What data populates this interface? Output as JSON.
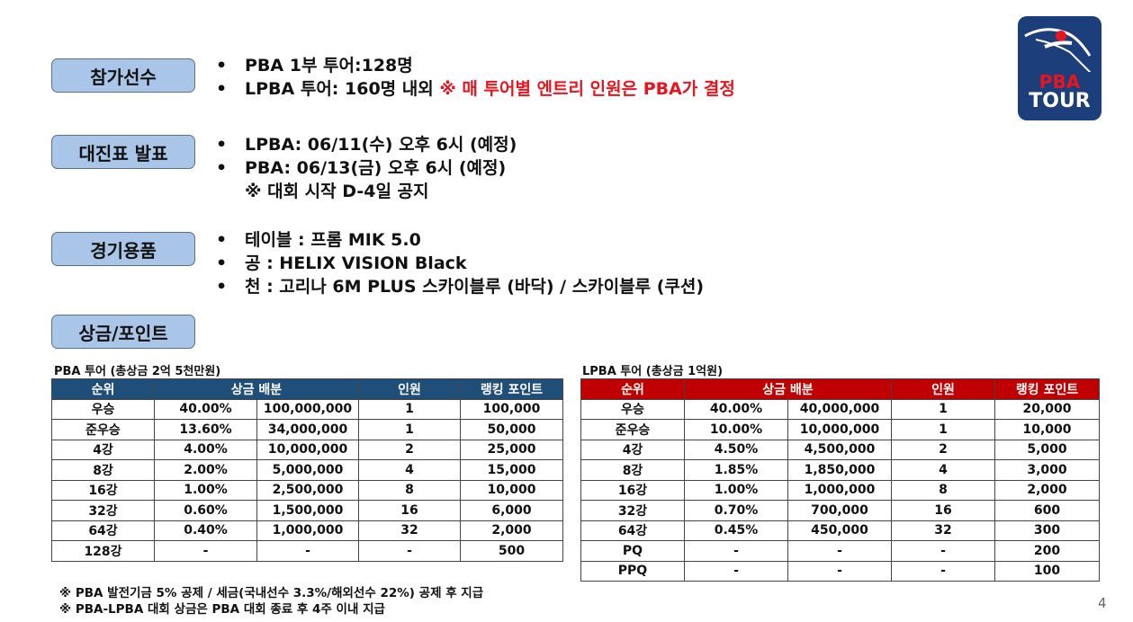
{
  "sections": {
    "participants": {
      "label": "참가선수",
      "items": [
        {
          "text": "PBA 1부 투어:128명",
          "note": ""
        },
        {
          "text": "LPBA 투어: 160명 내외 ",
          "note": "※ 매 투어별 엔트리 인원은 PBA가 결정"
        }
      ]
    },
    "bracket": {
      "label": "대진표 발표",
      "items": [
        "LPBA: 06/11(수) 오후 6시 (예정)",
        "PBA: 06/13(금) 오후 6시 (예정)"
      ],
      "note": "※ 대회 시작 D-4일 공지"
    },
    "equipment": {
      "label": "경기용품",
      "items": [
        "테이블 : 프롬 MIK 5.0",
        "공 : HELIX VISION Black",
        "천 : 고리나 6M PLUS 스카이블루 (바닥) / 스카이블루 (쿠션)"
      ]
    },
    "prize": {
      "label": "상금/포인트"
    }
  },
  "bullet_symbol": "•",
  "logo": {
    "line1": "PBA",
    "line2": "TOUR",
    "bg_color": "#1c3e7a",
    "accent_color": "#e8141e"
  },
  "pba_table": {
    "caption": "PBA 투어 (총상금 2억 5천만원)",
    "headers": [
      "순위",
      "상금 배분",
      "인원",
      "랭킹 포인트"
    ],
    "header_color": "#1f4e79",
    "rows": [
      [
        "우승",
        "40.00%",
        "100,000,000",
        "1",
        "100,000"
      ],
      [
        "준우승",
        "13.60%",
        "34,000,000",
        "1",
        "50,000"
      ],
      [
        "4강",
        "4.00%",
        "10,000,000",
        "2",
        "25,000"
      ],
      [
        "8강",
        "2.00%",
        "5,000,000",
        "4",
        "15,000"
      ],
      [
        "16강",
        "1.00%",
        "2,500,000",
        "8",
        "10,000"
      ],
      [
        "32강",
        "0.60%",
        "1,500,000",
        "16",
        "6,000"
      ],
      [
        "64강",
        "0.40%",
        "1,000,000",
        "32",
        "2,000"
      ],
      [
        "128강",
        "-",
        "-",
        "-",
        "500"
      ]
    ]
  },
  "lpba_table": {
    "caption": "LPBA 투어 (총상금 1억원)",
    "headers": [
      "순위",
      "상금 배분",
      "인원",
      "랭킹 포인트"
    ],
    "header_color": "#c00000",
    "rows": [
      [
        "우승",
        "40.00%",
        "40,000,000",
        "1",
        "20,000"
      ],
      [
        "준우승",
        "10.00%",
        "10,000,000",
        "1",
        "10,000"
      ],
      [
        "4강",
        "4.50%",
        "4,500,000",
        "2",
        "5,000"
      ],
      [
        "8강",
        "1.85%",
        "1,850,000",
        "4",
        "3,000"
      ],
      [
        "16강",
        "1.00%",
        "1,000,000",
        "8",
        "2,000"
      ],
      [
        "32강",
        "0.70%",
        "700,000",
        "16",
        "600"
      ],
      [
        "64강",
        "0.45%",
        "450,000",
        "32",
        "300"
      ],
      [
        "PQ",
        "-",
        "-",
        "-",
        "200"
      ],
      [
        "PPQ",
        "-",
        "-",
        "-",
        "100"
      ]
    ]
  },
  "notes": [
    "※ PBA 발전기금 5% 공제 / 세금(국내선수 3.3%/해외선수 22%) 공제 후 지급",
    "※ PBA-LPBA 대회 상금은 PBA 대회 종료 후 4주 이내 지급"
  ],
  "page_number": "4"
}
